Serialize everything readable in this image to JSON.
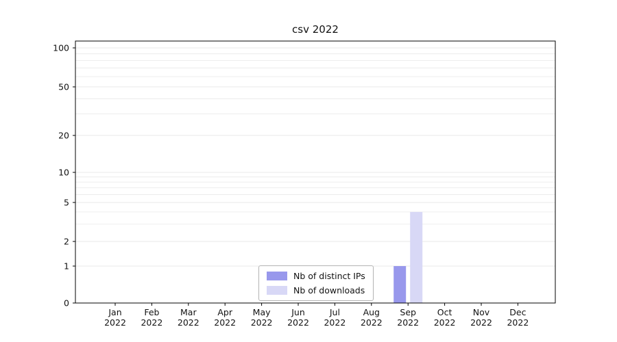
{
  "chart_data": {
    "type": "bar",
    "title": "csv 2022",
    "categories": [
      "Jan 2022",
      "Feb 2022",
      "Mar 2022",
      "Apr 2022",
      "May 2022",
      "Jun 2022",
      "Jul 2022",
      "Aug 2022",
      "Sep 2022",
      "Oct 2022",
      "Nov 2022",
      "Dec 2022"
    ],
    "series": [
      {
        "name": "Nb of distinct IPs",
        "color": "#9898ec",
        "values": [
          0,
          0,
          0,
          0,
          0,
          0,
          0,
          0,
          1,
          0,
          0,
          0
        ]
      },
      {
        "name": "Nb of downloads",
        "color": "#d8d8f6",
        "values": [
          0,
          0,
          0,
          0,
          0,
          0,
          0,
          0,
          4,
          0,
          0,
          0
        ]
      }
    ],
    "yscale": "symlog",
    "yticks": [
      0,
      1,
      2,
      5,
      10,
      20,
      50,
      100
    ],
    "ylim": [
      0,
      110
    ],
    "grid": true,
    "legend_position": "lower center"
  },
  "colors": {
    "axis": "#000000",
    "grid_minor": "#e9e9e9",
    "grid_major": "#e0e0e0",
    "text": "#111111"
  }
}
